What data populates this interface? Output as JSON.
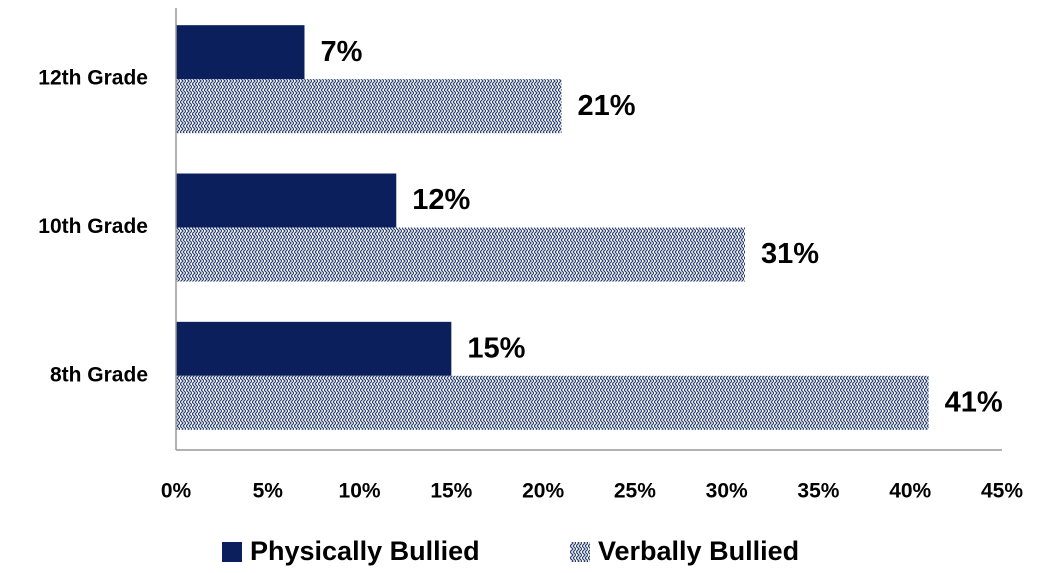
{
  "chart_data": {
    "type": "hbar",
    "categories": [
      "12th Grade",
      "10th Grade",
      "8th Grade"
    ],
    "series": [
      {
        "name": "Physically Bullied",
        "color": "#0b1f5c",
        "values": [
          7,
          12,
          15
        ],
        "value_labels": [
          "7%",
          "12%",
          "15%"
        ]
      },
      {
        "name": "Verbally Bullied",
        "color": "#2a4070",
        "pattern": "crosshatch",
        "values": [
          21,
          31,
          41
        ],
        "value_labels": [
          "21%",
          "31%",
          "41%"
        ]
      }
    ],
    "xlim": [
      0,
      45
    ],
    "xticks": [
      {
        "value": 0,
        "label": "0%"
      },
      {
        "value": 5,
        "label": "5%"
      },
      {
        "value": 10,
        "label": "10%"
      },
      {
        "value": 15,
        "label": "15%"
      },
      {
        "value": 20,
        "label": "20%"
      },
      {
        "value": 25,
        "label": "25%"
      },
      {
        "value": 30,
        "label": "30%"
      },
      {
        "value": 35,
        "label": "35%"
      },
      {
        "value": 40,
        "label": "40%"
      },
      {
        "value": 45,
        "label": "45%"
      }
    ],
    "grid": false,
    "legend": "bottom"
  }
}
